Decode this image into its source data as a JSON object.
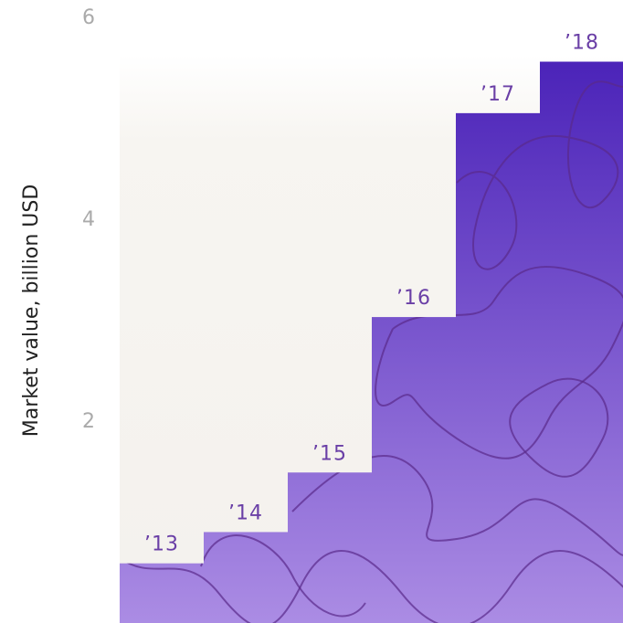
{
  "chart_data": {
    "type": "bar",
    "y_label": "Market value, billion USD",
    "categories": [
      "’13",
      "’14",
      "’15",
      "’16",
      "’17",
      "’18"
    ],
    "values": [
      0.6,
      0.91,
      1.5,
      3.04,
      5.06,
      5.57
    ],
    "color": "#6a42c8",
    "ylim": [
      0,
      6
    ],
    "yticks": [
      2,
      4,
      6
    ],
    "grid": false
  }
}
